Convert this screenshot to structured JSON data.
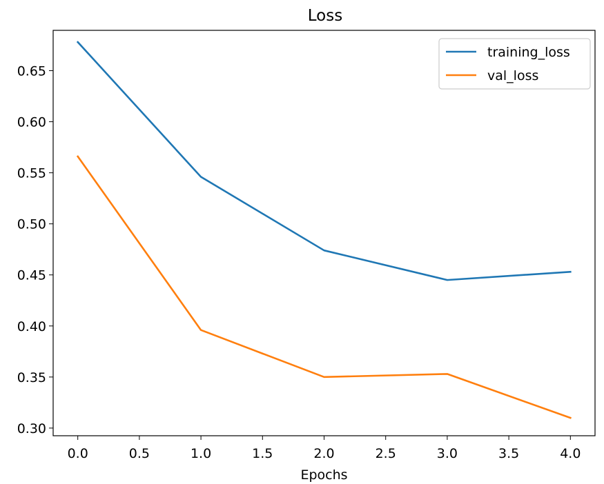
{
  "chart_data": {
    "type": "line",
    "title": "Loss",
    "xlabel": "Epochs",
    "ylabel": "",
    "x": [
      0,
      1,
      2,
      3,
      4
    ],
    "xlim": [
      -0.2,
      4.2
    ],
    "ylim": [
      0.2925,
      0.6895
    ],
    "xticks": [
      0.0,
      0.5,
      1.0,
      1.5,
      2.0,
      2.5,
      3.0,
      3.5,
      4.0
    ],
    "xtick_labels": [
      "0.0",
      "0.5",
      "1.0",
      "1.5",
      "2.0",
      "2.5",
      "3.0",
      "3.5",
      "4.0"
    ],
    "yticks": [
      0.3,
      0.35,
      0.4,
      0.45,
      0.5,
      0.55,
      0.6,
      0.65
    ],
    "ytick_labels": [
      "0.30",
      "0.35",
      "0.40",
      "0.45",
      "0.50",
      "0.55",
      "0.60",
      "0.65"
    ],
    "grid": false,
    "legend_position": "top-right",
    "series": [
      {
        "name": "training_loss",
        "color": "#1f77b4",
        "values": [
          0.678,
          0.546,
          0.474,
          0.445,
          0.453
        ]
      },
      {
        "name": "val_loss",
        "color": "#ff7f0e",
        "values": [
          0.566,
          0.396,
          0.35,
          0.353,
          0.31
        ]
      }
    ]
  }
}
